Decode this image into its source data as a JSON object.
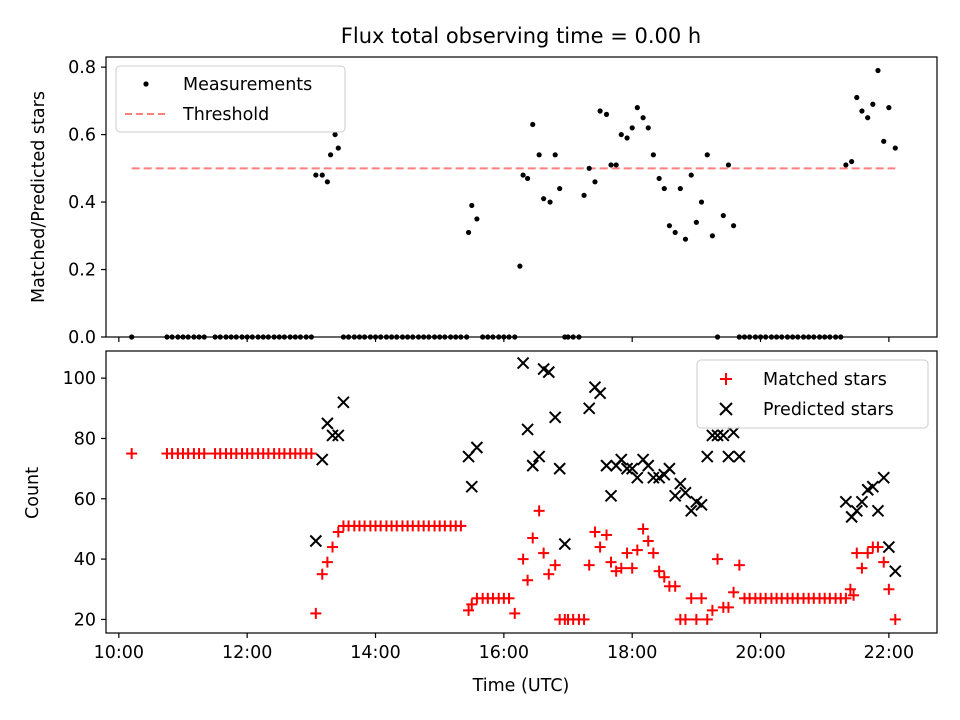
{
  "figure": {
    "title": "Flux total observing time = 0.00 h"
  },
  "chart_data": [
    {
      "type": "scatter",
      "panel": "top",
      "ylabel": "Matched/Predicted stars",
      "xlabel": "",
      "x_unit": "hours UTC",
      "xlim": [
        9.8,
        22.75
      ],
      "ylim": [
        0.0,
        0.83
      ],
      "y_ticks": [
        0.0,
        0.2,
        0.4,
        0.6,
        0.8
      ],
      "y_tick_labels": [
        "0.0",
        "0.2",
        "0.4",
        "0.6",
        "0.8"
      ],
      "grid": false,
      "legend_position": "top-left",
      "legend": [
        "Measurements",
        "Threshold"
      ],
      "colors": {
        "measurements": "#000000",
        "threshold": "#ff7f7f"
      },
      "threshold": {
        "name": "Threshold",
        "y": 0.5,
        "x_start": 10.2,
        "x_end": 22.1
      },
      "series": [
        {
          "name": "Measurements",
          "x": [
            10.2,
            10.75,
            10.83,
            10.92,
            11.0,
            11.08,
            11.17,
            11.25,
            11.33,
            11.5,
            11.58,
            11.67,
            11.75,
            11.83,
            11.92,
            12.0,
            12.08,
            12.17,
            12.25,
            12.33,
            12.42,
            12.5,
            12.58,
            12.67,
            12.75,
            12.83,
            12.92,
            13.0,
            13.07,
            13.17,
            13.25,
            13.3,
            13.37,
            13.42,
            13.5,
            13.58,
            13.67,
            13.75,
            13.83,
            13.92,
            14.0,
            14.08,
            14.17,
            14.25,
            14.33,
            14.42,
            14.5,
            14.58,
            14.67,
            14.75,
            14.83,
            14.92,
            15.0,
            15.08,
            15.17,
            15.25,
            15.33,
            15.42,
            15.45,
            15.5,
            15.58,
            15.67,
            15.75,
            15.83,
            15.92,
            16.0,
            16.08,
            16.17,
            16.25,
            16.3,
            16.37,
            16.45,
            16.55,
            16.62,
            16.72,
            16.8,
            16.87,
            16.95,
            17.0,
            17.08,
            17.17,
            17.25,
            17.33,
            17.42,
            17.5,
            17.6,
            17.67,
            17.75,
            17.83,
            17.92,
            18.0,
            18.08,
            18.17,
            18.25,
            18.33,
            18.42,
            18.5,
            18.58,
            18.67,
            18.75,
            18.83,
            18.92,
            19.0,
            19.08,
            19.17,
            19.25,
            19.33,
            19.42,
            19.5,
            19.58,
            19.67,
            19.75,
            19.83,
            19.92,
            20.0,
            20.08,
            20.17,
            20.25,
            20.33,
            20.42,
            20.5,
            20.58,
            20.67,
            20.75,
            20.83,
            20.92,
            21.0,
            21.08,
            21.17,
            21.25,
            21.33,
            21.42,
            21.5,
            21.58,
            21.67,
            21.75,
            21.83,
            21.92,
            22.0,
            22.1
          ],
          "y": [
            0.0,
            0.0,
            0.0,
            0.0,
            0.0,
            0.0,
            0.0,
            0.0,
            0.0,
            0.0,
            0.0,
            0.0,
            0.0,
            0.0,
            0.0,
            0.0,
            0.0,
            0.0,
            0.0,
            0.0,
            0.0,
            0.0,
            0.0,
            0.0,
            0.0,
            0.0,
            0.0,
            0.0,
            0.48,
            0.48,
            0.46,
            0.54,
            0.6,
            0.56,
            0.0,
            0.0,
            0.0,
            0.0,
            0.0,
            0.0,
            0.0,
            0.0,
            0.0,
            0.0,
            0.0,
            0.0,
            0.0,
            0.0,
            0.0,
            0.0,
            0.0,
            0.0,
            0.0,
            0.0,
            0.0,
            0.0,
            0.0,
            0.0,
            0.31,
            0.39,
            0.35,
            0.0,
            0.0,
            0.0,
            0.0,
            0.0,
            0.0,
            0.0,
            0.21,
            0.48,
            0.47,
            0.63,
            0.54,
            0.41,
            0.4,
            0.54,
            0.44,
            0.0,
            0.0,
            0.0,
            0.0,
            0.42,
            0.5,
            0.46,
            0.67,
            0.66,
            0.51,
            0.51,
            0.6,
            0.59,
            0.62,
            0.68,
            0.65,
            0.62,
            0.54,
            0.47,
            0.44,
            0.33,
            0.31,
            0.44,
            0.29,
            0.48,
            0.34,
            0.4,
            0.54,
            0.3,
            0.0,
            0.36,
            0.51,
            0.33,
            0.0,
            0.0,
            0.0,
            0.0,
            0.0,
            0.0,
            0.0,
            0.0,
            0.0,
            0.0,
            0.0,
            0.0,
            0.0,
            0.0,
            0.0,
            0.0,
            0.0,
            0.0,
            0.0,
            0.0,
            0.51,
            0.52,
            0.71,
            0.67,
            0.65,
            0.69,
            0.79,
            0.58,
            0.68,
            0.56
          ]
        }
      ]
    },
    {
      "type": "scatter",
      "panel": "bottom",
      "ylabel": "Count",
      "xlabel": "Time (UTC)",
      "x_unit": "hours UTC",
      "xlim": [
        9.8,
        22.75
      ],
      "ylim": [
        15.5,
        109
      ],
      "y_ticks": [
        20,
        40,
        60,
        80,
        100
      ],
      "y_tick_labels": [
        "20",
        "40",
        "60",
        "80",
        "100"
      ],
      "x_ticks": [
        10,
        12,
        14,
        16,
        18,
        20,
        22
      ],
      "x_tick_labels": [
        "10:00",
        "12:00",
        "14:00",
        "16:00",
        "18:00",
        "20:00",
        "22:00"
      ],
      "grid": false,
      "legend_position": "top-right",
      "legend": [
        "Matched stars",
        "Predicted stars"
      ],
      "colors": {
        "matched": "#ff0000",
        "predicted": "#000000"
      },
      "series": [
        {
          "name": "Matched stars",
          "x": [
            10.2,
            10.75,
            10.83,
            10.92,
            11.0,
            11.08,
            11.17,
            11.25,
            11.33,
            11.5,
            11.58,
            11.67,
            11.75,
            11.83,
            11.92,
            12.0,
            12.08,
            12.17,
            12.25,
            12.33,
            12.42,
            12.5,
            12.58,
            12.67,
            12.75,
            12.83,
            12.92,
            13.0,
            13.07,
            13.17,
            13.25,
            13.33,
            13.42,
            13.5,
            13.58,
            13.67,
            13.75,
            13.83,
            13.92,
            14.0,
            14.08,
            14.17,
            14.25,
            14.33,
            14.42,
            14.5,
            14.58,
            14.67,
            14.75,
            14.83,
            14.92,
            15.0,
            15.08,
            15.17,
            15.25,
            15.33,
            15.45,
            15.5,
            15.58,
            15.67,
            15.75,
            15.83,
            15.92,
            16.0,
            16.08,
            16.17,
            16.3,
            16.37,
            16.45,
            16.55,
            16.62,
            16.7,
            16.8,
            16.87,
            16.95,
            17.0,
            17.08,
            17.17,
            17.25,
            17.33,
            17.42,
            17.5,
            17.6,
            17.67,
            17.75,
            17.83,
            17.92,
            18.0,
            18.08,
            18.17,
            18.25,
            18.33,
            18.42,
            18.5,
            18.58,
            18.67,
            18.75,
            18.83,
            18.92,
            19.0,
            19.08,
            19.17,
            19.25,
            19.33,
            19.42,
            19.5,
            19.58,
            19.67,
            19.75,
            19.83,
            19.92,
            20.0,
            20.08,
            20.17,
            20.25,
            20.33,
            20.42,
            20.5,
            20.58,
            20.67,
            20.75,
            20.83,
            20.92,
            21.0,
            21.08,
            21.17,
            21.25,
            21.33,
            21.4,
            21.45,
            21.5,
            21.58,
            21.67,
            21.75,
            21.83,
            21.92,
            22.0,
            22.1
          ],
          "y": [
            75,
            75,
            75,
            75,
            75,
            75,
            75,
            75,
            75,
            75,
            75,
            75,
            75,
            75,
            75,
            75,
            75,
            75,
            75,
            75,
            75,
            75,
            75,
            75,
            75,
            75,
            75,
            75,
            22,
            35,
            39,
            44,
            49,
            51,
            51,
            51,
            51,
            51,
            51,
            51,
            51,
            51,
            51,
            51,
            51,
            51,
            51,
            51,
            51,
            51,
            51,
            51,
            51,
            51,
            51,
            51,
            23,
            25,
            27,
            27,
            27,
            27,
            27,
            27,
            27,
            22,
            40,
            33,
            47,
            56,
            42,
            35,
            38,
            20,
            20,
            20,
            20,
            20,
            20,
            38,
            49,
            44,
            48,
            39,
            36,
            37,
            42,
            37,
            43,
            50,
            46,
            42,
            36,
            34,
            31,
            31,
            20,
            20,
            27,
            20,
            27,
            20,
            23,
            40,
            24,
            24,
            29,
            38,
            27,
            27,
            27,
            27,
            27,
            27,
            27,
            27,
            27,
            27,
            27,
            27,
            27,
            27,
            27,
            27,
            27,
            27,
            27,
            27,
            30,
            28,
            42,
            37,
            42,
            44,
            44,
            39,
            30,
            20
          ]
        },
        {
          "name": "Predicted stars",
          "x": [
            13.07,
            13.17,
            13.25,
            13.33,
            13.42,
            13.5,
            15.45,
            15.5,
            15.58,
            16.3,
            16.37,
            16.45,
            16.55,
            16.62,
            16.7,
            16.8,
            16.87,
            16.95,
            17.33,
            17.42,
            17.5,
            17.6,
            17.67,
            17.75,
            17.83,
            17.92,
            18.0,
            18.08,
            18.17,
            18.25,
            18.33,
            18.42,
            18.5,
            18.58,
            18.67,
            18.75,
            18.83,
            18.92,
            19.0,
            19.08,
            19.17,
            19.25,
            19.33,
            19.42,
            19.5,
            19.58,
            19.67,
            21.33,
            21.42,
            21.5,
            21.58,
            21.67,
            21.75,
            21.83,
            21.92,
            22.0,
            22.1
          ],
          "y": [
            46,
            73,
            85,
            81,
            81,
            92,
            74,
            64,
            77,
            105,
            83,
            71,
            74,
            103,
            102,
            87,
            70,
            45,
            90,
            97,
            95,
            71,
            61,
            71,
            73,
            70,
            70,
            67,
            73,
            71,
            67,
            67,
            68,
            70,
            61,
            65,
            62,
            56,
            59,
            58,
            74,
            81,
            81,
            81,
            74,
            82,
            74,
            59,
            54,
            56,
            59,
            63,
            64,
            56,
            67,
            44,
            36
          ]
        }
      ]
    }
  ]
}
